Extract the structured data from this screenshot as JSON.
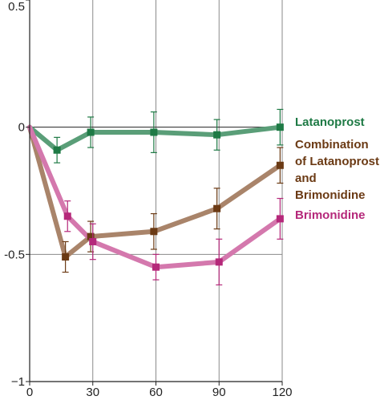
{
  "chart_data": {
    "type": "line",
    "title": "",
    "xlabel": "",
    "ylabel": "",
    "xlim": [
      0,
      120
    ],
    "ylim": [
      -1,
      0.5
    ],
    "x_ticks": [
      0,
      30,
      60,
      90,
      120
    ],
    "x_tick_labels": [
      "0",
      "30",
      "60",
      "90",
      "120"
    ],
    "y_ticks": [
      0.5,
      0,
      -0.5,
      -1
    ],
    "y_tick_labels": [
      "0.5",
      "0",
      "-0.5",
      "−1"
    ],
    "grid": true,
    "legend": "right",
    "series": [
      {
        "name": "Latanoprost",
        "color": "#5a9e78",
        "marker_color": "#1e7a45",
        "label_color": "#1e7a45",
        "x": [
          0,
          13,
          29,
          59,
          89,
          119
        ],
        "y": [
          0,
          -0.09,
          -0.02,
          -0.02,
          -0.03,
          0
        ],
        "err": [
          0,
          0.05,
          0.06,
          0.08,
          0.06,
          0.07
        ]
      },
      {
        "name": "Combination of Latanoprost and Brimonidine",
        "name_lines": [
          "Combination",
          "of Latanoprost",
          "and",
          "Brimonidine"
        ],
        "color": "#a9846a",
        "marker_color": "#6b3a14",
        "label_color": "#6b3a14",
        "x": [
          0,
          17,
          29,
          59,
          89,
          119
        ],
        "y": [
          0,
          -0.51,
          -0.43,
          -0.41,
          -0.32,
          -0.15
        ],
        "err": [
          0,
          0.06,
          0.06,
          0.07,
          0.08,
          0.07
        ]
      },
      {
        "name": "Brimonidine",
        "color": "#d478ad",
        "marker_color": "#b5287a",
        "label_color": "#b5287a",
        "x": [
          0,
          18,
          30,
          60,
          90,
          119
        ],
        "y": [
          0,
          -0.35,
          -0.45,
          -0.55,
          -0.53,
          -0.36
        ],
        "err": [
          0,
          0.06,
          0.07,
          0.05,
          0.09,
          0.08
        ]
      }
    ]
  }
}
